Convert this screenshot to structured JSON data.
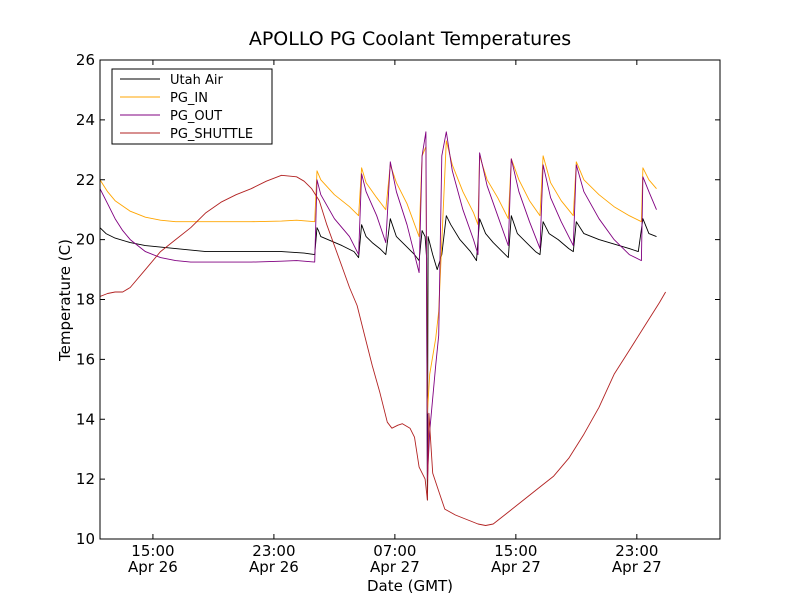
{
  "chart_data": {
    "type": "line",
    "title": "APOLLO PG Coolant Temperatures",
    "xlabel": "Date (GMT)",
    "ylabel": "Temperature (C)",
    "xlim": [
      0,
      41
    ],
    "ylim": [
      10,
      26
    ],
    "x_unit": "hours since Apr 26 11:30 GMT",
    "yticks": [
      10,
      12,
      14,
      16,
      18,
      20,
      22,
      24,
      26
    ],
    "xticks": [
      {
        "x": 3.5,
        "time": "15:00",
        "date": "Apr 26"
      },
      {
        "x": 11.5,
        "time": "23:00",
        "date": "Apr 26"
      },
      {
        "x": 19.5,
        "time": "07:00",
        "date": "Apr 27"
      },
      {
        "x": 27.5,
        "time": "15:00",
        "date": "Apr 27"
      },
      {
        "x": 35.5,
        "time": "23:00",
        "date": "Apr 27"
      }
    ],
    "legend_position": "top-left",
    "grid": false,
    "series": [
      {
        "name": "Utah Air",
        "color": "#000000",
        "points": [
          [
            0,
            20.4
          ],
          [
            0.4,
            20.2
          ],
          [
            1,
            20.05
          ],
          [
            2,
            19.9
          ],
          [
            3,
            19.8
          ],
          [
            4,
            19.75
          ],
          [
            5,
            19.7
          ],
          [
            6,
            19.65
          ],
          [
            7,
            19.6
          ],
          [
            8,
            19.6
          ],
          [
            10,
            19.6
          ],
          [
            12,
            19.6
          ],
          [
            13.5,
            19.55
          ],
          [
            14.2,
            19.5
          ],
          [
            14.35,
            20.4
          ],
          [
            14.45,
            20.3
          ],
          [
            14.6,
            20.1
          ],
          [
            16,
            19.8
          ],
          [
            16.8,
            19.6
          ],
          [
            17.1,
            19.4
          ],
          [
            17.3,
            20.5
          ],
          [
            17.6,
            20.1
          ],
          [
            18,
            19.9
          ],
          [
            18.5,
            19.7
          ],
          [
            18.9,
            19.5
          ],
          [
            19.2,
            20.7
          ],
          [
            19.6,
            20.1
          ],
          [
            20.2,
            19.8
          ],
          [
            20.8,
            19.5
          ],
          [
            21.1,
            19.3
          ],
          [
            21.3,
            20.3
          ],
          [
            21.5,
            20.1
          ],
          [
            21.6,
            19.4
          ],
          [
            21.65,
            11.3
          ],
          [
            21.7,
            20.1
          ],
          [
            22,
            19.5
          ],
          [
            22.3,
            19.0
          ],
          [
            22.6,
            19.5
          ],
          [
            22.9,
            20.8
          ],
          [
            23.2,
            20.5
          ],
          [
            23.8,
            20.0
          ],
          [
            24.5,
            19.6
          ],
          [
            24.9,
            19.3
          ],
          [
            25.1,
            20.7
          ],
          [
            25.5,
            20.2
          ],
          [
            26,
            19.9
          ],
          [
            26.6,
            19.6
          ],
          [
            27,
            19.4
          ],
          [
            27.2,
            20.8
          ],
          [
            27.6,
            20.2
          ],
          [
            28.2,
            19.9
          ],
          [
            28.8,
            19.6
          ],
          [
            29.1,
            19.5
          ],
          [
            29.3,
            20.6
          ],
          [
            29.7,
            20.2
          ],
          [
            30.3,
            20.0
          ],
          [
            31,
            19.7
          ],
          [
            31.3,
            19.6
          ],
          [
            31.5,
            20.6
          ],
          [
            32,
            20.2
          ],
          [
            33,
            20.0
          ],
          [
            34,
            19.85
          ],
          [
            35,
            19.7
          ],
          [
            35.6,
            19.6
          ],
          [
            35.9,
            20.7
          ],
          [
            36.3,
            20.2
          ],
          [
            36.8,
            20.1
          ]
        ]
      },
      {
        "name": "PG_IN",
        "color": "#ffa500",
        "points": [
          [
            0,
            22.0
          ],
          [
            0.5,
            21.6
          ],
          [
            1,
            21.3
          ],
          [
            2,
            20.95
          ],
          [
            3,
            20.75
          ],
          [
            4,
            20.65
          ],
          [
            5,
            20.6
          ],
          [
            6,
            20.6
          ],
          [
            8,
            20.6
          ],
          [
            10,
            20.6
          ],
          [
            12,
            20.62
          ],
          [
            13,
            20.65
          ],
          [
            14.2,
            20.6
          ],
          [
            14.35,
            22.3
          ],
          [
            14.6,
            22.0
          ],
          [
            15.5,
            21.5
          ],
          [
            16.5,
            21.1
          ],
          [
            17.1,
            20.8
          ],
          [
            17.3,
            22.4
          ],
          [
            17.6,
            21.9
          ],
          [
            18.3,
            21.4
          ],
          [
            18.9,
            21.0
          ],
          [
            19.2,
            22.5
          ],
          [
            19.6,
            21.9
          ],
          [
            20.3,
            21.2
          ],
          [
            21.1,
            20.1
          ],
          [
            21.3,
            22.8
          ],
          [
            21.55,
            23.1
          ],
          [
            21.65,
            14.2
          ],
          [
            21.8,
            15.5
          ],
          [
            22.2,
            16.7
          ],
          [
            22.4,
            17.6
          ],
          [
            22.9,
            23.3
          ],
          [
            23.3,
            22.5
          ],
          [
            24,
            21.6
          ],
          [
            24.7,
            20.9
          ],
          [
            25,
            20.5
          ],
          [
            25.1,
            22.8
          ],
          [
            25.6,
            22.0
          ],
          [
            26.3,
            21.4
          ],
          [
            27,
            20.7
          ],
          [
            27.2,
            22.7
          ],
          [
            27.7,
            22.0
          ],
          [
            28.4,
            21.3
          ],
          [
            29.1,
            20.8
          ],
          [
            29.3,
            22.8
          ],
          [
            29.8,
            21.9
          ],
          [
            30.5,
            21.3
          ],
          [
            31.3,
            20.8
          ],
          [
            31.5,
            22.6
          ],
          [
            32,
            22.0
          ],
          [
            33,
            21.5
          ],
          [
            34,
            21.1
          ],
          [
            35,
            20.8
          ],
          [
            35.8,
            20.6
          ],
          [
            35.9,
            22.4
          ],
          [
            36.3,
            22.0
          ],
          [
            36.8,
            21.7
          ]
        ]
      },
      {
        "name": "PG_OUT",
        "color": "#800080",
        "points": [
          [
            0,
            21.7
          ],
          [
            0.5,
            21.2
          ],
          [
            1,
            20.7
          ],
          [
            1.5,
            20.3
          ],
          [
            2,
            20.0
          ],
          [
            3,
            19.6
          ],
          [
            4,
            19.4
          ],
          [
            5,
            19.3
          ],
          [
            6,
            19.25
          ],
          [
            8,
            19.25
          ],
          [
            10,
            19.25
          ],
          [
            12,
            19.28
          ],
          [
            13,
            19.3
          ],
          [
            14.2,
            19.25
          ],
          [
            14.35,
            22.0
          ],
          [
            14.6,
            21.5
          ],
          [
            15.5,
            20.7
          ],
          [
            16.5,
            20.1
          ],
          [
            17.1,
            19.5
          ],
          [
            17.3,
            22.2
          ],
          [
            17.6,
            21.6
          ],
          [
            18.3,
            20.8
          ],
          [
            18.9,
            19.9
          ],
          [
            19.2,
            22.6
          ],
          [
            19.6,
            21.6
          ],
          [
            20.3,
            20.5
          ],
          [
            21.1,
            18.9
          ],
          [
            21.3,
            22.8
          ],
          [
            21.55,
            23.6
          ],
          [
            21.65,
            12.0
          ],
          [
            21.8,
            13.6
          ],
          [
            22.2,
            15.8
          ],
          [
            22.4,
            16.8
          ],
          [
            22.6,
            22.8
          ],
          [
            22.9,
            23.6
          ],
          [
            23.3,
            22.3
          ],
          [
            24,
            21.0
          ],
          [
            24.7,
            20.0
          ],
          [
            25,
            19.5
          ],
          [
            25.1,
            22.9
          ],
          [
            25.6,
            21.8
          ],
          [
            26.3,
            20.8
          ],
          [
            27,
            19.8
          ],
          [
            27.2,
            22.7
          ],
          [
            27.7,
            21.6
          ],
          [
            28.4,
            20.6
          ],
          [
            29.1,
            19.7
          ],
          [
            29.3,
            22.5
          ],
          [
            29.8,
            21.4
          ],
          [
            30.5,
            20.6
          ],
          [
            31.3,
            19.8
          ],
          [
            31.5,
            22.5
          ],
          [
            32,
            21.6
          ],
          [
            33,
            20.7
          ],
          [
            34,
            20.0
          ],
          [
            35,
            19.5
          ],
          [
            35.8,
            19.3
          ],
          [
            35.9,
            22.1
          ],
          [
            36.3,
            21.6
          ],
          [
            36.8,
            21.0
          ]
        ]
      },
      {
        "name": "PG_SHUTTLE",
        "color": "#b22222",
        "points": [
          [
            0,
            18.1
          ],
          [
            0.5,
            18.2
          ],
          [
            1,
            18.25
          ],
          [
            1.5,
            18.25
          ],
          [
            2,
            18.4
          ],
          [
            3,
            19.0
          ],
          [
            4,
            19.6
          ],
          [
            5,
            20.0
          ],
          [
            6,
            20.4
          ],
          [
            7,
            20.9
          ],
          [
            8,
            21.25
          ],
          [
            9,
            21.5
          ],
          [
            10,
            21.7
          ],
          [
            11,
            21.95
          ],
          [
            12,
            22.15
          ],
          [
            13,
            22.1
          ],
          [
            13.5,
            21.95
          ],
          [
            14,
            21.7
          ],
          [
            14.5,
            21.3
          ],
          [
            15,
            20.5
          ],
          [
            15.5,
            19.8
          ],
          [
            16,
            19.1
          ],
          [
            16.5,
            18.4
          ],
          [
            17,
            17.8
          ],
          [
            17.5,
            16.8
          ],
          [
            18,
            15.8
          ],
          [
            18.5,
            14.9
          ],
          [
            19,
            13.9
          ],
          [
            19.3,
            13.7
          ],
          [
            19.7,
            13.8
          ],
          [
            20,
            13.85
          ],
          [
            20.5,
            13.7
          ],
          [
            20.8,
            13.4
          ],
          [
            21.1,
            12.4
          ],
          [
            21.5,
            12.0
          ],
          [
            21.65,
            11.3
          ],
          [
            21.75,
            14.2
          ],
          [
            22.0,
            12.2
          ],
          [
            22.4,
            11.6
          ],
          [
            22.8,
            11.0
          ],
          [
            23.5,
            10.8
          ],
          [
            24,
            10.7
          ],
          [
            24.5,
            10.6
          ],
          [
            25,
            10.5
          ],
          [
            25.5,
            10.45
          ],
          [
            26,
            10.5
          ],
          [
            27,
            10.9
          ],
          [
            28,
            11.3
          ],
          [
            29,
            11.7
          ],
          [
            30,
            12.1
          ],
          [
            31,
            12.7
          ],
          [
            32,
            13.5
          ],
          [
            33,
            14.4
          ],
          [
            34,
            15.5
          ],
          [
            35,
            16.3
          ],
          [
            36,
            17.1
          ],
          [
            37,
            17.9
          ],
          [
            37.4,
            18.25
          ]
        ]
      }
    ]
  }
}
